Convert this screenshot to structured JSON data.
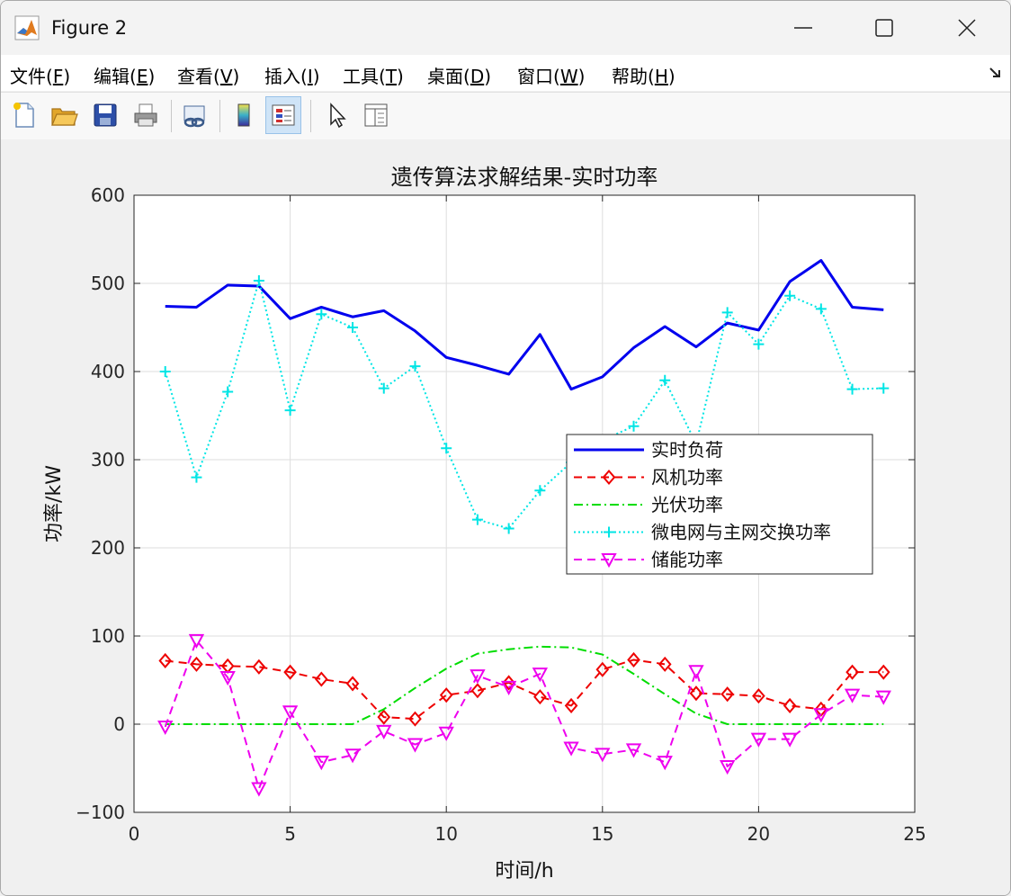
{
  "window": {
    "title": "Figure 2",
    "icon": "matlab-icon"
  },
  "menu": [
    {
      "label": "文件(",
      "key": "F",
      "end": ")"
    },
    {
      "label": "编辑(",
      "key": "E",
      "end": ")"
    },
    {
      "label": "查看(",
      "key": "V",
      "end": ")"
    },
    {
      "label": "插入(",
      "key": "I",
      "end": ")"
    },
    {
      "label": "工具(",
      "key": "T",
      "end": ")"
    },
    {
      "label": "桌面(",
      "key": "D",
      "end": ")"
    },
    {
      "label": "窗口(",
      "key": "W",
      "end": ")"
    },
    {
      "label": "帮助(",
      "key": "H",
      "end": ")"
    }
  ],
  "toolbar": [
    "new-file-icon",
    "open-folder-icon",
    "save-icon",
    "print-icon",
    "link-plot-icon",
    "colorbar-icon",
    "legend-icon",
    "pointer-icon",
    "property-inspector-icon"
  ],
  "chart_data": {
    "type": "line",
    "title": "遗传算法求解结果-实时功率",
    "xlabel": "时间/h",
    "ylabel": "功率/kW",
    "xlim": [
      0,
      25
    ],
    "ylim": [
      -100,
      600
    ],
    "xticks": [
      0,
      5,
      10,
      15,
      20,
      25
    ],
    "yticks": [
      -100,
      0,
      100,
      200,
      300,
      400,
      500,
      600
    ],
    "ytick_labels": [
      "−100",
      "0",
      "100",
      "200",
      "300",
      "400",
      "500",
      "600"
    ],
    "grid": true,
    "legend_position": "center-right",
    "x": [
      1,
      2,
      3,
      4,
      5,
      6,
      7,
      8,
      9,
      10,
      11,
      12,
      13,
      14,
      15,
      16,
      17,
      18,
      19,
      20,
      21,
      22,
      23,
      24
    ],
    "series": [
      {
        "name": "实时负荷",
        "color": "#0000ee",
        "style": "solid",
        "marker": "none",
        "values": [
          474,
          473,
          498,
          497,
          460,
          473,
          462,
          469,
          446,
          416,
          407,
          397,
          442,
          380,
          394,
          427,
          451,
          428,
          455,
          447,
          502,
          526,
          473,
          470
        ]
      },
      {
        "name": "风机功率",
        "color": "#ee0000",
        "style": "dashed",
        "marker": "diamond",
        "values": [
          72,
          68,
          66,
          65,
          59,
          51,
          46,
          8,
          6,
          33,
          38,
          47,
          31,
          21,
          62,
          73,
          68,
          35,
          34,
          32,
          21,
          17,
          59,
          59
        ]
      },
      {
        "name": "光伏功率",
        "color": "#00dd00",
        "style": "dashdot",
        "marker": "none",
        "values": [
          0,
          0,
          0,
          0,
          0,
          0,
          0,
          17,
          41,
          63,
          80,
          85,
          88,
          87,
          79,
          57,
          34,
          12,
          0,
          0,
          0,
          0,
          0,
          0
        ]
      },
      {
        "name": "微电网与主网交换功率",
        "color": "#00e5e5",
        "style": "dotted",
        "marker": "plus",
        "values": [
          400,
          280,
          377,
          503,
          356,
          465,
          450,
          381,
          406,
          313,
          232,
          222,
          265,
          297,
          322,
          338,
          390,
          318,
          467,
          431,
          486,
          471,
          380,
          381
        ]
      },
      {
        "name": "储能功率",
        "color": "#ee00ee",
        "style": "dashed",
        "marker": "triangle-down",
        "values": [
          -3,
          95,
          53,
          -73,
          14,
          -43,
          -35,
          -8,
          -23,
          -10,
          55,
          42,
          57,
          -27,
          -34,
          -29,
          -43,
          60,
          -48,
          -17,
          -17,
          11,
          33,
          31
        ]
      }
    ]
  }
}
